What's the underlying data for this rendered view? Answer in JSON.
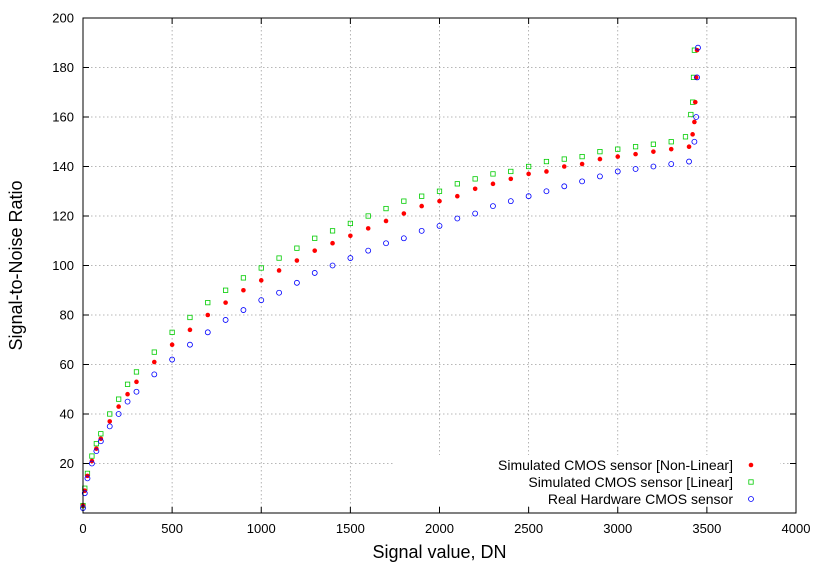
{
  "chart_data": {
    "type": "scatter",
    "title": "",
    "xlabel": "Signal value, DN",
    "ylabel": "Signal-to-Noise Ratio",
    "xlim": [
      0,
      4000
    ],
    "ylim": [
      0,
      200
    ],
    "xticks": [
      0,
      500,
      1000,
      1500,
      2000,
      2500,
      3000,
      3500,
      4000
    ],
    "yticks": [
      20,
      40,
      60,
      80,
      100,
      120,
      140,
      160,
      180,
      200
    ],
    "grid": true,
    "legend_position": "bottom-right",
    "series": [
      {
        "name": "Simulated CMOS sensor [Non-Linear]",
        "color": "#ff0000",
        "marker": "filled-circle",
        "points": [
          [
            0,
            3
          ],
          [
            10,
            9
          ],
          [
            25,
            15
          ],
          [
            50,
            21
          ],
          [
            75,
            26
          ],
          [
            100,
            30
          ],
          [
            150,
            37
          ],
          [
            200,
            43
          ],
          [
            250,
            48
          ],
          [
            300,
            53
          ],
          [
            400,
            61
          ],
          [
            500,
            68
          ],
          [
            600,
            74
          ],
          [
            700,
            80
          ],
          [
            800,
            85
          ],
          [
            900,
            90
          ],
          [
            1000,
            94
          ],
          [
            1100,
            98
          ],
          [
            1200,
            102
          ],
          [
            1300,
            106
          ],
          [
            1400,
            109
          ],
          [
            1500,
            112
          ],
          [
            1600,
            115
          ],
          [
            1700,
            118
          ],
          [
            1800,
            121
          ],
          [
            1900,
            124
          ],
          [
            2000,
            126
          ],
          [
            2100,
            128
          ],
          [
            2200,
            131
          ],
          [
            2300,
            133
          ],
          [
            2400,
            135
          ],
          [
            2500,
            137
          ],
          [
            2600,
            138
          ],
          [
            2700,
            140
          ],
          [
            2800,
            141
          ],
          [
            2900,
            143
          ],
          [
            3000,
            144
          ],
          [
            3100,
            145
          ],
          [
            3200,
            146
          ],
          [
            3300,
            147
          ],
          [
            3400,
            148
          ],
          [
            3420,
            153
          ],
          [
            3430,
            158
          ],
          [
            3435,
            166
          ],
          [
            3440,
            176
          ],
          [
            3445,
            187
          ]
        ]
      },
      {
        "name": "Simulated CMOS sensor [Linear]",
        "color": "#00cc00",
        "marker": "open-square",
        "points": [
          [
            0,
            3
          ],
          [
            10,
            10
          ],
          [
            25,
            16
          ],
          [
            50,
            23
          ],
          [
            75,
            28
          ],
          [
            100,
            32
          ],
          [
            150,
            40
          ],
          [
            200,
            46
          ],
          [
            250,
            52
          ],
          [
            300,
            57
          ],
          [
            400,
            65
          ],
          [
            500,
            73
          ],
          [
            600,
            79
          ],
          [
            700,
            85
          ],
          [
            800,
            90
          ],
          [
            900,
            95
          ],
          [
            1000,
            99
          ],
          [
            1100,
            103
          ],
          [
            1200,
            107
          ],
          [
            1300,
            111
          ],
          [
            1400,
            114
          ],
          [
            1500,
            117
          ],
          [
            1600,
            120
          ],
          [
            1700,
            123
          ],
          [
            1800,
            126
          ],
          [
            1900,
            128
          ],
          [
            2000,
            130
          ],
          [
            2100,
            133
          ],
          [
            2200,
            135
          ],
          [
            2300,
            137
          ],
          [
            2400,
            138
          ],
          [
            2500,
            140
          ],
          [
            2600,
            142
          ],
          [
            2700,
            143
          ],
          [
            2800,
            144
          ],
          [
            2900,
            146
          ],
          [
            3000,
            147
          ],
          [
            3100,
            148
          ],
          [
            3200,
            149
          ],
          [
            3300,
            150
          ],
          [
            3380,
            152
          ],
          [
            3410,
            161
          ],
          [
            3420,
            166
          ],
          [
            3425,
            176
          ],
          [
            3430,
            187
          ]
        ]
      },
      {
        "name": "Real Hardware CMOS sensor",
        "color": "#0000ff",
        "marker": "open-circle",
        "points": [
          [
            0,
            2
          ],
          [
            10,
            8
          ],
          [
            25,
            14
          ],
          [
            50,
            20
          ],
          [
            75,
            25
          ],
          [
            100,
            29
          ],
          [
            150,
            35
          ],
          [
            200,
            40
          ],
          [
            250,
            45
          ],
          [
            300,
            49
          ],
          [
            400,
            56
          ],
          [
            500,
            62
          ],
          [
            600,
            68
          ],
          [
            700,
            73
          ],
          [
            800,
            78
          ],
          [
            900,
            82
          ],
          [
            1000,
            86
          ],
          [
            1100,
            89
          ],
          [
            1200,
            93
          ],
          [
            1300,
            97
          ],
          [
            1400,
            100
          ],
          [
            1500,
            103
          ],
          [
            1600,
            106
          ],
          [
            1700,
            109
          ],
          [
            1800,
            111
          ],
          [
            1900,
            114
          ],
          [
            2000,
            116
          ],
          [
            2100,
            119
          ],
          [
            2200,
            121
          ],
          [
            2300,
            124
          ],
          [
            2400,
            126
          ],
          [
            2500,
            128
          ],
          [
            2600,
            130
          ],
          [
            2700,
            132
          ],
          [
            2800,
            134
          ],
          [
            2900,
            136
          ],
          [
            3000,
            138
          ],
          [
            3100,
            139
          ],
          [
            3200,
            140
          ],
          [
            3300,
            141
          ],
          [
            3400,
            142
          ],
          [
            3430,
            150
          ],
          [
            3440,
            160
          ],
          [
            3445,
            176
          ],
          [
            3450,
            188
          ]
        ]
      }
    ]
  }
}
